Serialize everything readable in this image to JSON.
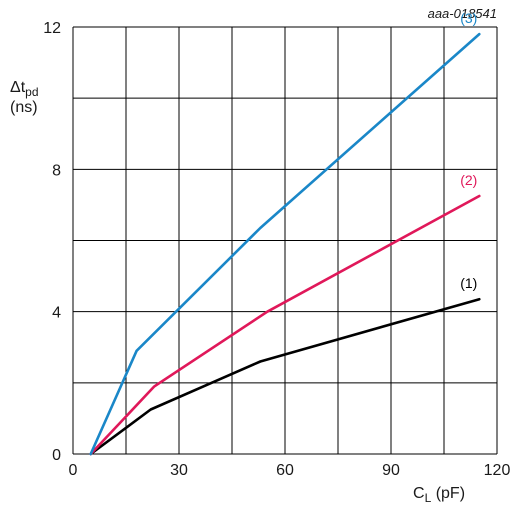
{
  "chart_data": {
    "type": "line",
    "code": "aaa-018541",
    "ylabel": {
      "symbol": "Δt",
      "subscript": "pd",
      "unit": "(ns)"
    },
    "xlabel": {
      "symbol": "C",
      "subscript": "L",
      "unit": " (pF)"
    },
    "xlim": [
      0,
      120
    ],
    "ylim": [
      0,
      12
    ],
    "x_ticks": [
      "0",
      "30",
      "60",
      "90",
      "120"
    ],
    "y_ticks": [
      "0",
      "4",
      "8",
      "12"
    ],
    "grid": true,
    "series": [
      {
        "name": "(1)",
        "color": "#000000",
        "points": [
          [
            5,
            0
          ],
          [
            22,
            1.25
          ],
          [
            53,
            2.6
          ],
          [
            115,
            4.35
          ]
        ]
      },
      {
        "name": "(2)",
        "color": "#e0185a",
        "points": [
          [
            5,
            0
          ],
          [
            23,
            1.9
          ],
          [
            55,
            4.0
          ],
          [
            115,
            7.25
          ]
        ]
      },
      {
        "name": "(3)",
        "color": "#1a87c8",
        "points": [
          [
            5,
            0
          ],
          [
            18,
            2.9
          ],
          [
            53,
            6.35
          ],
          [
            115,
            11.8
          ]
        ]
      }
    ]
  }
}
